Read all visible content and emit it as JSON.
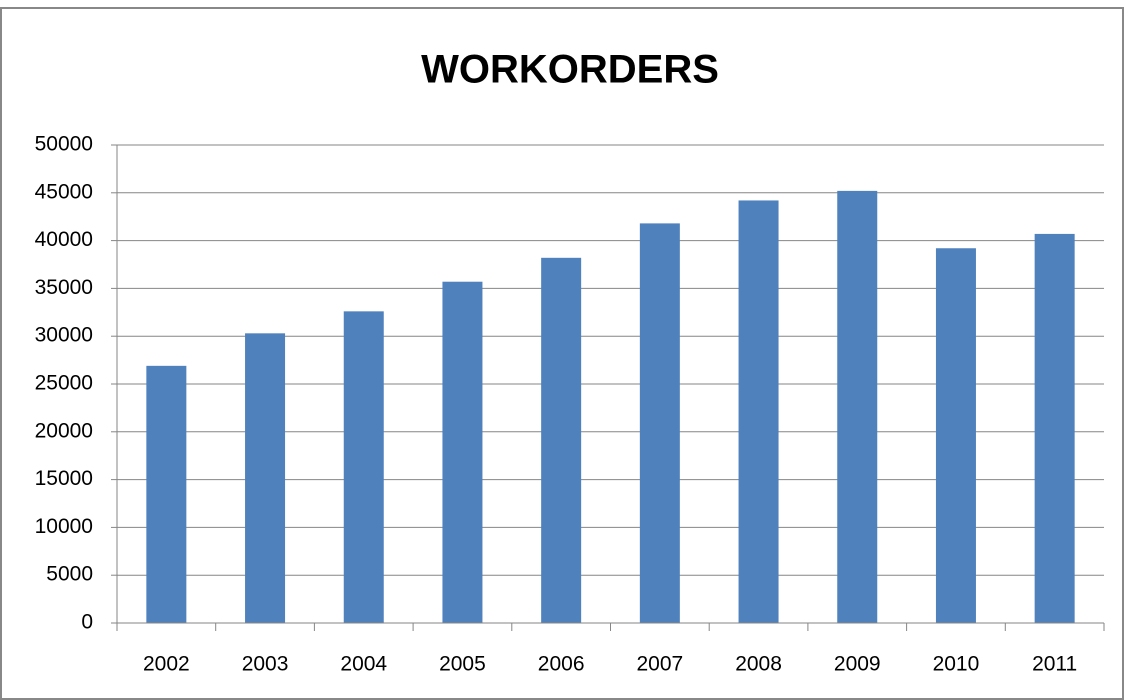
{
  "chart_data": {
    "type": "bar",
    "title": "WORKORDERS",
    "categories": [
      "2002",
      "2003",
      "2004",
      "2005",
      "2006",
      "2007",
      "2008",
      "2009",
      "2010",
      "2011"
    ],
    "values": [
      26900,
      30300,
      32600,
      35700,
      38200,
      41800,
      44200,
      45200,
      39200,
      40700
    ],
    "color": "#4f81bd",
    "ylim": [
      0,
      50000
    ],
    "yticks": [
      0,
      5000,
      10000,
      15000,
      20000,
      25000,
      30000,
      35000,
      40000,
      45000,
      50000
    ],
    "grid": true
  }
}
